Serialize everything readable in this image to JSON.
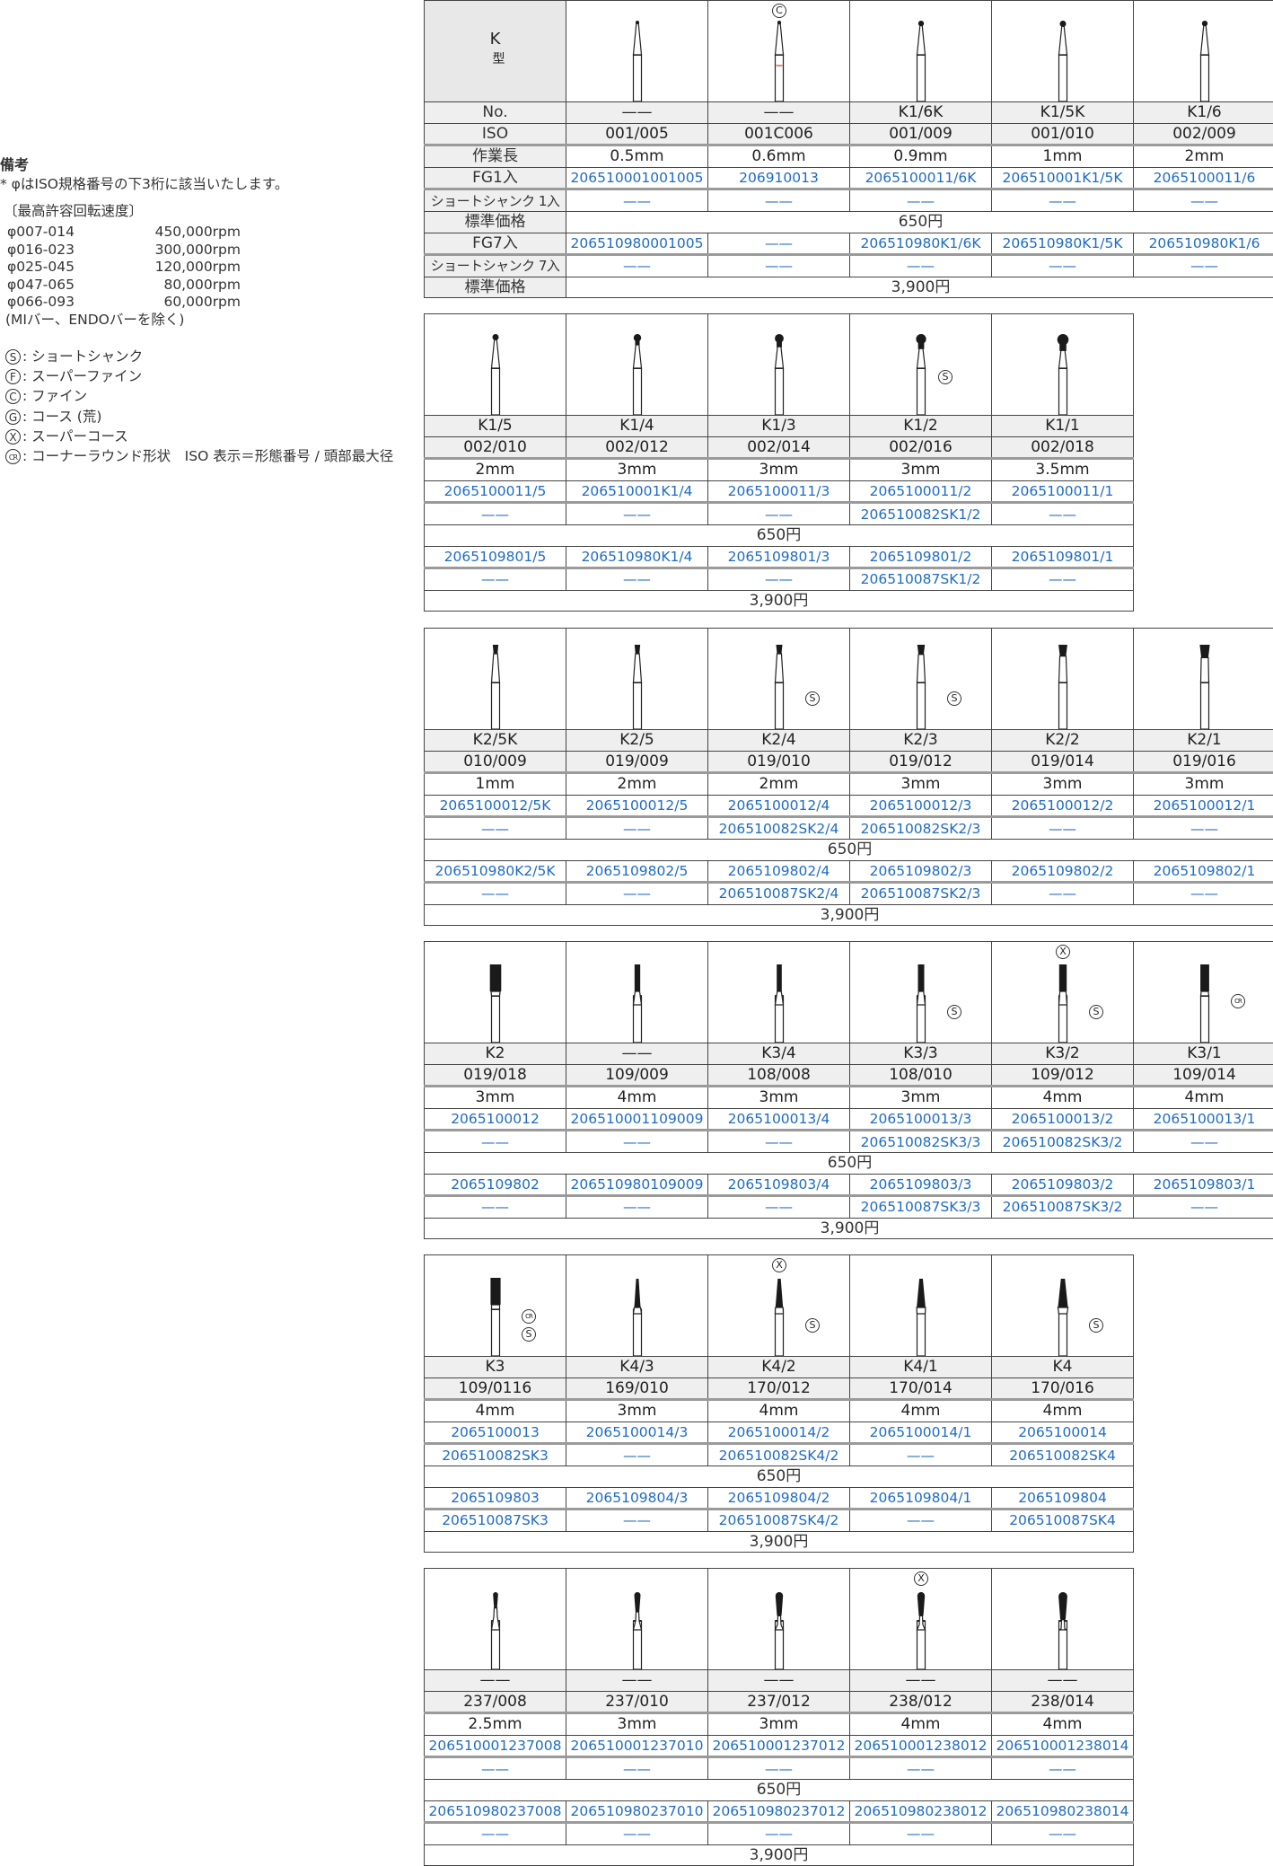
{
  "notes": {
    "title": "備考",
    "footnote": "* φはISO規格番号の下3桁に該当いたします。",
    "speed_heading": "〔最高許容回転速度〕",
    "speeds": [
      {
        "range": "φ007-014",
        "rpm": "450,000rpm"
      },
      {
        "range": "φ016-023",
        "rpm": "300,000rpm"
      },
      {
        "range": "φ025-045",
        "rpm": "120,000rpm"
      },
      {
        "range": "φ047-065",
        "rpm": "80,000rpm"
      },
      {
        "range": "φ066-093",
        "rpm": "60,000rpm"
      }
    ],
    "speed_exclusion": "(MIバー、ENDOバーを除く)",
    "legend": [
      {
        "mark": "S",
        "text": "ショートシャンク"
      },
      {
        "mark": "F",
        "text": "スーパーファイン"
      },
      {
        "mark": "C",
        "text": "ファイン"
      },
      {
        "mark": "G",
        "text": "コース (荒)"
      },
      {
        "mark": "X",
        "text": "スーパーコース"
      },
      {
        "mark": "CR",
        "text": "コーナーラウンド形状　ISO 表示＝形態番号 / 頭部最大径"
      }
    ]
  },
  "header": {
    "type_label": "K",
    "type_sub": "型",
    "row_labels": [
      "No.",
      "ISO",
      "作業長",
      "FG1入",
      "ショートシャンク 1入",
      "標準価格",
      "FG7入",
      "ショートシャンク 7入",
      "標準価格"
    ]
  },
  "colors": {
    "code_blue": "#1f6bc4",
    "row_gray": "#efefef",
    "fine_band_red": "#e8584a"
  },
  "tables": [
    {
      "shape": "round",
      "price_1": "650円",
      "price_7": "3,900円",
      "cols": [
        {
          "no": "——",
          "iso": "001/005",
          "len": "0.5mm",
          "fg1": "206510001001005",
          "ss1": "——",
          "fg7": "206510980001005",
          "ss7": "——",
          "top": "",
          "side": []
        },
        {
          "no": "——",
          "iso": "001C006",
          "len": "0.6mm",
          "fg1": "206910013",
          "ss1": "——",
          "fg7": "——",
          "ss7": "——",
          "top": "C",
          "side": [],
          "band": "fine_band_red"
        },
        {
          "no": "K1/6K",
          "iso": "001/009",
          "len": "0.9mm",
          "fg1": "2065100011/6K",
          "ss1": "——",
          "fg7": "206510980K1/6K",
          "ss7": "——",
          "top": "",
          "side": []
        },
        {
          "no": "K1/5K",
          "iso": "001/010",
          "len": "1mm",
          "fg1": "206510001K1/5K",
          "ss1": "——",
          "fg7": "206510980K1/5K",
          "ss7": "——",
          "top": "",
          "side": []
        },
        {
          "no": "K1/6",
          "iso": "002/009",
          "len": "2mm",
          "fg1": "2065100011/6",
          "ss1": "——",
          "fg7": "206510980K1/6",
          "ss7": "——",
          "top": "",
          "side": []
        }
      ]
    },
    {
      "shape": "round",
      "price_1": "650円",
      "price_7": "3,900円",
      "cols": [
        {
          "no": "K1/5",
          "iso": "002/010",
          "len": "2mm",
          "fg1": "2065100011/5",
          "ss1": "——",
          "fg7": "2065109801/5",
          "ss7": "——",
          "top": "",
          "side": []
        },
        {
          "no": "K1/4",
          "iso": "002/012",
          "len": "3mm",
          "fg1": "206510001K1/4",
          "ss1": "——",
          "fg7": "206510980K1/4",
          "ss7": "——",
          "top": "",
          "side": []
        },
        {
          "no": "K1/3",
          "iso": "002/014",
          "len": "3mm",
          "fg1": "2065100011/3",
          "ss1": "——",
          "fg7": "2065109801/3",
          "ss7": "——",
          "top": "",
          "side": []
        },
        {
          "no": "K1/2",
          "iso": "002/016",
          "len": "3mm",
          "fg1": "2065100011/2",
          "ss1": "206510082SK1/2",
          "fg7": "2065109801/2",
          "ss7": "206510087SK1/2",
          "top": "",
          "side": [
            "S"
          ]
        },
        {
          "no": "K1/1",
          "iso": "002/018",
          "len": "3.5mm",
          "fg1": "2065100011/1",
          "ss1": "——",
          "fg7": "2065109801/1",
          "ss7": "——",
          "top": "",
          "side": []
        }
      ]
    },
    {
      "shape": "inverted-cone",
      "price_1": "650円",
      "price_7": "3,900円",
      "cols": [
        {
          "no": "K2/5K",
          "iso": "010/009",
          "len": "1mm",
          "fg1": "2065100012/5K",
          "ss1": "——",
          "fg7": "206510980K2/5K",
          "ss7": "——",
          "top": "",
          "side": []
        },
        {
          "no": "K2/5",
          "iso": "019/009",
          "len": "2mm",
          "fg1": "2065100012/5",
          "ss1": "——",
          "fg7": "2065109802/5",
          "ss7": "——",
          "top": "",
          "side": []
        },
        {
          "no": "K2/4",
          "iso": "019/010",
          "len": "2mm",
          "fg1": "2065100012/4",
          "ss1": "206510082SK2/4",
          "fg7": "2065109802/4",
          "ss7": "206510087SK2/4",
          "top": "",
          "side": [
            "S"
          ]
        },
        {
          "no": "K2/3",
          "iso": "019/012",
          "len": "3mm",
          "fg1": "2065100012/3",
          "ss1": "206510082SK2/3",
          "fg7": "2065109802/3",
          "ss7": "206510087SK2/3",
          "top": "",
          "side": [
            "S"
          ]
        },
        {
          "no": "K2/2",
          "iso": "019/014",
          "len": "3mm",
          "fg1": "2065100012/2",
          "ss1": "——",
          "fg7": "2065109802/2",
          "ss7": "——",
          "top": "",
          "side": []
        },
        {
          "no": "K2/1",
          "iso": "019/016",
          "len": "3mm",
          "fg1": "2065100012/1",
          "ss1": "——",
          "fg7": "2065109802/1",
          "ss7": "——",
          "top": "",
          "side": []
        }
      ]
    },
    {
      "shape": "cylinder",
      "price_1": "650円",
      "price_7": "3,900円",
      "cols": [
        {
          "no": "K2",
          "iso": "019/018",
          "len": "3mm",
          "fg1": "2065100012",
          "ss1": "——",
          "fg7": "2065109802",
          "ss7": "——",
          "top": "",
          "side": []
        },
        {
          "no": "——",
          "iso": "109/009",
          "len": "4mm",
          "fg1": "206510001109009",
          "ss1": "——",
          "fg7": "206510980109009",
          "ss7": "——",
          "top": "",
          "side": []
        },
        {
          "no": "K3/4",
          "iso": "108/008",
          "len": "3mm",
          "fg1": "2065100013/4",
          "ss1": "——",
          "fg7": "2065109803/4",
          "ss7": "——",
          "top": "",
          "side": []
        },
        {
          "no": "K3/3",
          "iso": "108/010",
          "len": "3mm",
          "fg1": "2065100013/3",
          "ss1": "206510082SK3/3",
          "fg7": "2065109803/3",
          "ss7": "206510087SK3/3",
          "top": "",
          "side": [
            "S"
          ]
        },
        {
          "no": "K3/2",
          "iso": "109/012",
          "len": "4mm",
          "fg1": "2065100013/2",
          "ss1": "206510082SK3/2",
          "fg7": "2065109803/2",
          "ss7": "206510087SK3/2",
          "top": "X",
          "side": [
            "S"
          ]
        },
        {
          "no": "K3/1",
          "iso": "109/014",
          "len": "4mm",
          "fg1": "2065100013/1",
          "ss1": "——",
          "fg7": "2065109803/1",
          "ss7": "——",
          "top": "",
          "side": [
            "CR"
          ]
        }
      ]
    },
    {
      "shape": "taper",
      "price_1": "650円",
      "price_7": "3,900円",
      "cols": [
        {
          "no": "K3",
          "iso": "109/0116",
          "len": "4mm",
          "fg1": "2065100013",
          "ss1": "206510082SK3",
          "fg7": "2065109803",
          "ss7": "206510087SK3",
          "top": "",
          "side": [
            "CR",
            "S"
          ],
          "head": "cylinder"
        },
        {
          "no": "K4/3",
          "iso": "169/010",
          "len": "3mm",
          "fg1": "2065100014/3",
          "ss1": "——",
          "fg7": "2065109804/3",
          "ss7": "——",
          "top": "",
          "side": []
        },
        {
          "no": "K4/2",
          "iso": "170/012",
          "len": "4mm",
          "fg1": "2065100014/2",
          "ss1": "206510082SK4/2",
          "fg7": "2065109804/2",
          "ss7": "206510087SK4/2",
          "top": "X",
          "side": [
            "S"
          ]
        },
        {
          "no": "K4/1",
          "iso": "170/014",
          "len": "4mm",
          "fg1": "2065100014/1",
          "ss1": "——",
          "fg7": "2065109804/1",
          "ss7": "——",
          "top": "",
          "side": []
        },
        {
          "no": "K4",
          "iso": "170/016",
          "len": "4mm",
          "fg1": "2065100014",
          "ss1": "206510082SK4",
          "fg7": "2065109804",
          "ss7": "206510087SK4",
          "top": "",
          "side": [
            "S"
          ]
        }
      ]
    },
    {
      "shape": "pear",
      "price_1": "650円",
      "price_7": "3,900円",
      "cols": [
        {
          "no": "——",
          "iso": "237/008",
          "len": "2.5mm",
          "fg1": "206510001237008",
          "ss1": "——",
          "fg7": "206510980237008",
          "ss7": "——",
          "top": "",
          "side": []
        },
        {
          "no": "——",
          "iso": "237/010",
          "len": "3mm",
          "fg1": "206510001237010",
          "ss1": "——",
          "fg7": "206510980237010",
          "ss7": "——",
          "top": "",
          "side": []
        },
        {
          "no": "——",
          "iso": "237/012",
          "len": "3mm",
          "fg1": "206510001237012",
          "ss1": "——",
          "fg7": "206510980237012",
          "ss7": "——",
          "top": "",
          "side": []
        },
        {
          "no": "——",
          "iso": "238/012",
          "len": "4mm",
          "fg1": "206510001238012",
          "ss1": "——",
          "fg7": "206510980238012",
          "ss7": "——",
          "top": "X",
          "side": []
        },
        {
          "no": "——",
          "iso": "238/014",
          "len": "4mm",
          "fg1": "206510001238014",
          "ss1": "——",
          "fg7": "206510980238014",
          "ss7": "——",
          "top": "",
          "side": []
        }
      ]
    }
  ]
}
